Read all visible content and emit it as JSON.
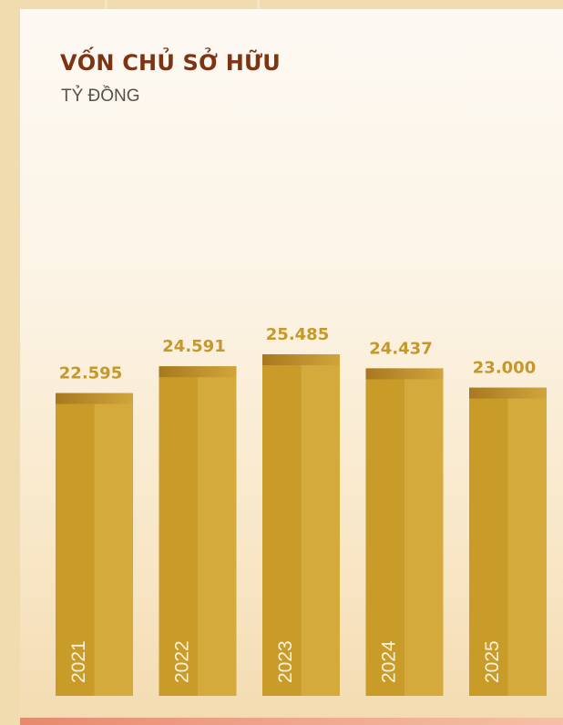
{
  "title": "VỐN CHỦ SỞ HỮU",
  "subtitle": "TỶ ĐỒNG",
  "colors": {
    "title": "#7d3414",
    "bar": "#c99b29",
    "bar_cap": "#a8781f",
    "value_label": "#c4982a",
    "year_label": "#fbf2dc"
  },
  "chart_data": {
    "type": "bar",
    "title": "VỐN CHỦ SỞ HỮU",
    "ylabel": "TỶ ĐỒNG",
    "xlabel": "",
    "categories": [
      "2021",
      "2022",
      "2023",
      "2024",
      "2025"
    ],
    "values": [
      22595,
      24591,
      25485,
      24437,
      23000
    ],
    "value_labels": [
      "22.595",
      "24.591",
      "25.485",
      "24.437",
      "23.000"
    ],
    "ylim": [
      0,
      25485
    ],
    "grid": false,
    "legend": "none"
  }
}
